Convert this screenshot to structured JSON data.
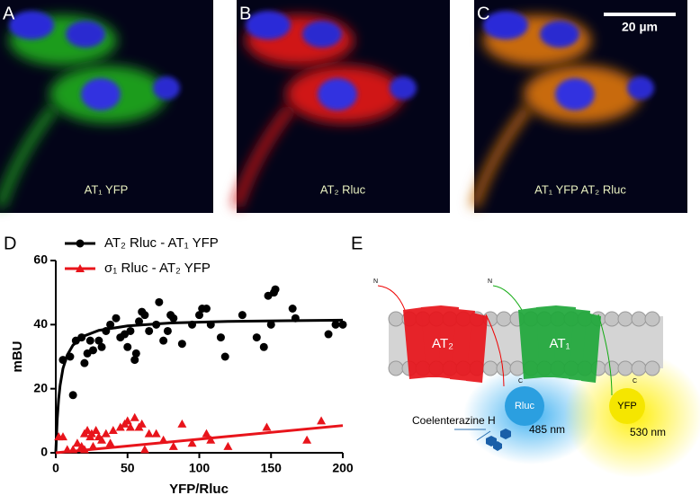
{
  "panels": [
    {
      "letter": "A",
      "caption": "AT₁ YFP"
    },
    {
      "letter": "B",
      "caption": "AT₂ Rluc"
    },
    {
      "letter": "C",
      "caption": "AT₁ YFP AT₂ Rluc"
    }
  ],
  "scale_bar": "20 µm",
  "chart_data": {
    "type": "scatter",
    "label": "D",
    "xlabel": "YFP/Rluc",
    "ylabel": "mBU",
    "xlim": [
      0,
      200
    ],
    "xticks": [
      0,
      50,
      100,
      150,
      200
    ],
    "ylim": [
      0,
      60
    ],
    "yticks": [
      0,
      20,
      40,
      60
    ],
    "series": [
      {
        "name": "AT₂ Rluc - AT₁ YFP",
        "color": "#000000",
        "marker": "circle",
        "x": [
          5,
          10,
          12,
          14,
          18,
          20,
          22,
          24,
          26,
          30,
          32,
          35,
          38,
          42,
          45,
          48,
          50,
          52,
          55,
          56,
          58,
          60,
          62,
          65,
          70,
          72,
          75,
          78,
          80,
          82,
          88,
          95,
          100,
          102,
          105,
          108,
          115,
          118,
          130,
          140,
          145,
          148,
          150,
          152,
          153,
          165,
          167,
          190,
          195,
          200
        ],
        "values": [
          29,
          30,
          18,
          35,
          36,
          28,
          31,
          35,
          32,
          35,
          33,
          38,
          40,
          42,
          36,
          37,
          33,
          38,
          29,
          31,
          41,
          44,
          43,
          38,
          40,
          47,
          35,
          38,
          43,
          42,
          34,
          40,
          43,
          45,
          45,
          40,
          36,
          30,
          43,
          36,
          33,
          49,
          40,
          50,
          51,
          45,
          42,
          37,
          40,
          40
        ]
      },
      {
        "name": "σ₁ Rluc - AT₂ YFP",
        "color": "#e8141b",
        "marker": "triangle",
        "x": [
          2,
          5,
          8,
          12,
          15,
          18,
          20,
          20,
          22,
          24,
          25,
          26,
          28,
          30,
          32,
          35,
          38,
          40,
          45,
          48,
          50,
          52,
          55,
          58,
          60,
          62,
          65,
          70,
          75,
          82,
          88,
          95,
          105,
          108,
          120,
          147,
          175,
          185
        ],
        "values": [
          5,
          5,
          1,
          1,
          3,
          2,
          1,
          6,
          7,
          5,
          6,
          2,
          7,
          5,
          4,
          6,
          3,
          7,
          8,
          9,
          10,
          8,
          11,
          8,
          9,
          1,
          6,
          6,
          4,
          2,
          9,
          3,
          6,
          4,
          2,
          8,
          4,
          10
        ]
      }
    ],
    "fits": [
      {
        "color": "#000000",
        "x": [
          0,
          1,
          2,
          3,
          5,
          8,
          12,
          20,
          30,
          50,
          80,
          120,
          160,
          200
        ],
        "values": [
          0,
          10.5,
          16.8,
          21,
          26.3,
          30.5,
          33.6,
          36.5,
          38.2,
          39.6,
          40.5,
          41,
          41.2,
          41.4
        ]
      },
      {
        "color": "#e8141b",
        "x": [
          0,
          200
        ],
        "values": [
          0,
          8.5
        ]
      }
    ]
  },
  "diagram": {
    "letter": "E",
    "n_left": "N",
    "n_right": "N",
    "c_left": "C",
    "c_right": "C",
    "receptor_left": "AT₂",
    "receptor_right": "AT₁",
    "donor": "Rluc",
    "acceptor": "YFP",
    "substrate": "Coelenterazine H",
    "donor_wavelength": "485 nm",
    "acceptor_wavelength": "530 nm"
  }
}
